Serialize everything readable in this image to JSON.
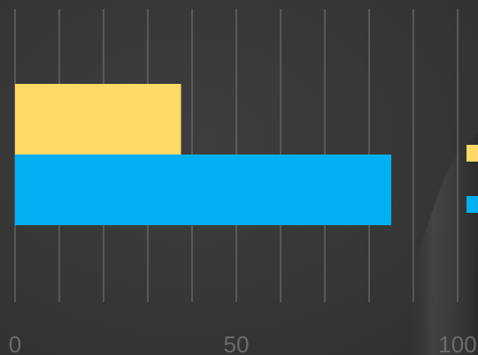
{
  "chart_data": {
    "type": "bar",
    "orientation": "horizontal",
    "title": "",
    "xlabel": "",
    "ylabel": "",
    "xlim": [
      0,
      100
    ],
    "x_ticks": [
      {
        "value": 0,
        "label": "0"
      },
      {
        "value": 50,
        "label": "50"
      },
      {
        "value": 100,
        "label": "100"
      }
    ],
    "gridlines": [
      0,
      10,
      20,
      30,
      40,
      50,
      60,
      70,
      80,
      90,
      100
    ],
    "grid": true,
    "legend": {
      "position": "right",
      "entries": 2
    },
    "series": [
      {
        "color": "#FFD966",
        "values": [
          37.5
        ]
      },
      {
        "color": "#00B0F0",
        "values": [
          85
        ]
      }
    ]
  }
}
